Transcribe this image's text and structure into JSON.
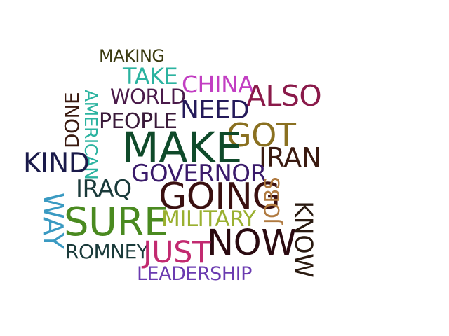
{
  "words": [
    {
      "id": "making",
      "text": "MAKING",
      "color": "#3a3a10"
    },
    {
      "id": "take",
      "text": "TAKE",
      "color": "#2bb3a0"
    },
    {
      "id": "china",
      "text": "CHINA",
      "color": "#c23ec2"
    },
    {
      "id": "world",
      "text": "WORLD",
      "color": "#4a1a4a"
    },
    {
      "id": "also",
      "text": "ALSO",
      "color": "#8a1a4a"
    },
    {
      "id": "done",
      "text": "DONE",
      "color": "#3a1a10"
    },
    {
      "id": "american",
      "text": "AMERICAN",
      "color": "#2bb3a0"
    },
    {
      "id": "need",
      "text": "NEED",
      "color": "#241a5a"
    },
    {
      "id": "people",
      "text": "PEOPLE",
      "color": "#3a1a3a"
    },
    {
      "id": "got",
      "text": "GOT",
      "color": "#8a7020"
    },
    {
      "id": "make",
      "text": "MAKE",
      "color": "#0f4a2a"
    },
    {
      "id": "kind",
      "text": "KIND",
      "color": "#1a1a4a"
    },
    {
      "id": "iran",
      "text": "IRAN",
      "color": "#3a1a10"
    },
    {
      "id": "governor",
      "text": "GOVERNOR",
      "color": "#3a1a6a"
    },
    {
      "id": "iraq",
      "text": "IRAQ",
      "color": "#1a3a3a"
    },
    {
      "id": "going",
      "text": "GOING",
      "color": "#3a1010"
    },
    {
      "id": "jobs",
      "text": "JOBS",
      "color": "#b07a40"
    },
    {
      "id": "way",
      "text": "WAY",
      "color": "#3a9ac2"
    },
    {
      "id": "sure",
      "text": "SURE",
      "color": "#4a8a20"
    },
    {
      "id": "military",
      "text": "MILITARY",
      "color": "#9ab030"
    },
    {
      "id": "know",
      "text": "KNOW",
      "color": "#2a1a10"
    },
    {
      "id": "now",
      "text": "NOW",
      "color": "#2a0a10"
    },
    {
      "id": "romney",
      "text": "ROMNEY",
      "color": "#1a3a3a"
    },
    {
      "id": "just",
      "text": "JUST",
      "color": "#c22a70"
    },
    {
      "id": "leadership",
      "text": "LEADERSHIP",
      "color": "#6a3ab0"
    }
  ]
}
